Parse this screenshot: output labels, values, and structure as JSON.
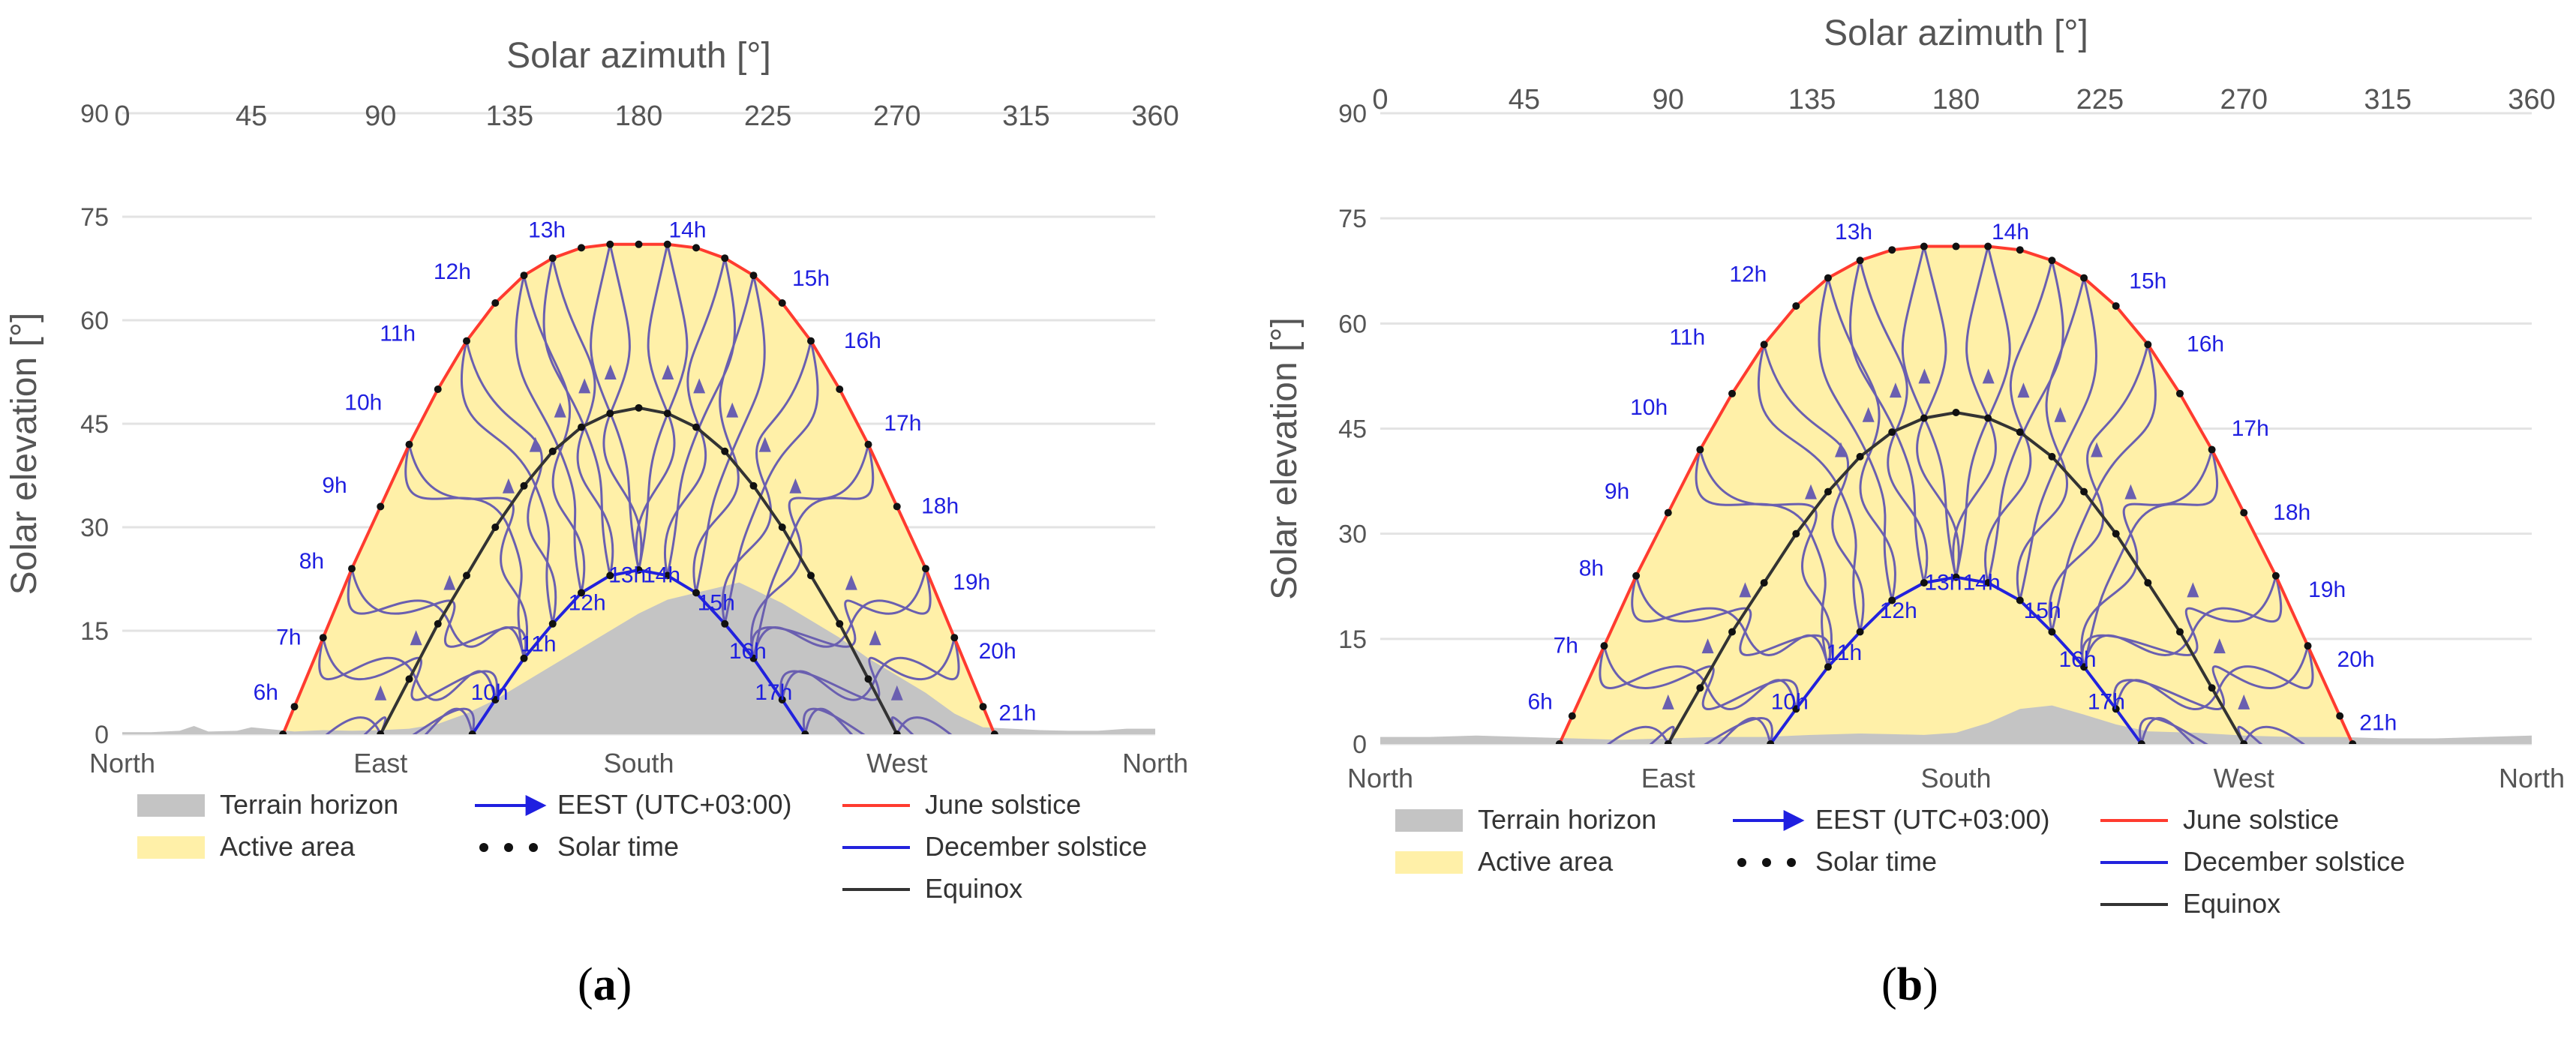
{
  "figure": {
    "panel_a_label": "a",
    "panel_b_label": "b"
  },
  "colors": {
    "terrain": "#c4c4c4",
    "active_area": "#fff0a8",
    "june": "#ff3b2f",
    "december": "#2222dd",
    "equinox": "#333333",
    "analemma": "#6a5fb0",
    "hour_label": "#1f1fe0",
    "grid": "#e3e3e3",
    "axis_text": "#555555",
    "dot": "#111111"
  },
  "chart_data": [
    {
      "type": "line",
      "panel": "a",
      "title": "Solar azimuth [°]",
      "xlabel": "Solar azimuth [°]",
      "ylabel": "Solar elevation [°]",
      "xlim": [
        0,
        360
      ],
      "ylim": [
        0,
        90
      ],
      "grid": true,
      "x_ticks": [
        "0",
        "45",
        "90",
        "135",
        "180",
        "225",
        "270",
        "315",
        "360"
      ],
      "y_ticks": [
        "0",
        "15",
        "30",
        "45",
        "60",
        "75",
        "90"
      ],
      "compass_labels": [
        {
          "label": "North",
          "azimuth": 0
        },
        {
          "label": "East",
          "azimuth": 90
        },
        {
          "label": "South",
          "azimuth": 180
        },
        {
          "label": "West",
          "azimuth": 270
        },
        {
          "label": "North",
          "azimuth": 360
        }
      ],
      "legend": {
        "position": "bottom",
        "items": [
          {
            "label": "Terrain horizon",
            "kind": "area",
            "color": "#c4c4c4"
          },
          {
            "label": "Active area",
            "kind": "area",
            "color": "#fff0a8"
          },
          {
            "label": "EEST (UTC+03:00)",
            "kind": "arrow",
            "color": "#1f1fe0"
          },
          {
            "label": "Solar time",
            "kind": "dots",
            "color": "#111111"
          },
          {
            "label": "June solstice",
            "kind": "line",
            "color": "#ff3b2f"
          },
          {
            "label": "December solstice",
            "kind": "line",
            "color": "#2222dd"
          },
          {
            "label": "Equinox",
            "kind": "line",
            "color": "#333333"
          }
        ]
      },
      "series": [
        {
          "name": "Terrain horizon",
          "x": [
            0,
            10,
            20,
            25,
            30,
            40,
            45,
            55,
            60,
            70,
            80,
            90,
            100,
            110,
            120,
            130,
            140,
            150,
            160,
            170,
            180,
            190,
            200,
            210,
            215,
            220,
            230,
            240,
            250,
            260,
            270,
            280,
            290,
            300,
            310,
            320,
            330,
            340,
            350,
            360
          ],
          "y": [
            0.3,
            0.3,
            0.5,
            1.2,
            0.4,
            0.5,
            1.0,
            0.6,
            0.4,
            0.6,
            0.5,
            0.6,
            0.8,
            1.5,
            3.0,
            5.0,
            7.5,
            10.0,
            12.5,
            15.0,
            17.5,
            19.5,
            20.5,
            21.5,
            22.0,
            21.0,
            19.0,
            16.5,
            14.0,
            11.0,
            8.5,
            6.0,
            3.0,
            1.0,
            0.8,
            0.6,
            0.5,
            0.5,
            0.8,
            0.8
          ]
        },
        {
          "name": "June solstice",
          "x": [
            56,
            60,
            70,
            80,
            90,
            100,
            110,
            120,
            130,
            140,
            150,
            160,
            170,
            180,
            190,
            200,
            210,
            220,
            230,
            240,
            250,
            260,
            270,
            280,
            290,
            300,
            304
          ],
          "y": [
            0,
            4,
            14,
            24,
            33,
            42,
            50,
            57,
            62.5,
            66.5,
            69,
            70.5,
            71,
            71,
            71,
            70.5,
            69,
            66.5,
            62.5,
            57,
            50,
            42,
            33,
            24,
            14,
            4,
            0
          ]
        },
        {
          "name": "Equinox",
          "x": [
            90,
            100,
            110,
            120,
            130,
            140,
            150,
            160,
            170,
            180,
            190,
            200,
            210,
            220,
            230,
            240,
            250,
            260,
            270
          ],
          "y": [
            0,
            8,
            16,
            23,
            30,
            36,
            41,
            44.5,
            46.5,
            47.3,
            46.5,
            44.5,
            41,
            36,
            30,
            23,
            16,
            8,
            0
          ]
        },
        {
          "name": "December solstice",
          "x": [
            122,
            130,
            140,
            150,
            160,
            170,
            180,
            190,
            200,
            210,
            220,
            230,
            238
          ],
          "y": [
            0,
            5,
            11,
            16,
            20.5,
            23,
            23.8,
            23,
            20.5,
            16,
            11,
            5,
            0
          ]
        }
      ],
      "hour_labels": [
        {
          "label": "6h",
          "azimuth": 50,
          "elevation": 5
        },
        {
          "label": "7h",
          "azimuth": 58,
          "elevation": 13
        },
        {
          "label": "8h",
          "azimuth": 66,
          "elevation": 24
        },
        {
          "label": "9h",
          "azimuth": 74,
          "elevation": 35
        },
        {
          "label": "10h",
          "azimuth": 84,
          "elevation": 47
        },
        {
          "label": "11h",
          "azimuth": 96,
          "elevation": 57
        },
        {
          "label": "12h",
          "azimuth": 115,
          "elevation": 66
        },
        {
          "label": "13h",
          "azimuth": 148,
          "elevation": 72
        },
        {
          "label": "14h",
          "azimuth": 197,
          "elevation": 72
        },
        {
          "label": "15h",
          "azimuth": 240,
          "elevation": 65
        },
        {
          "label": "16h",
          "azimuth": 258,
          "elevation": 56
        },
        {
          "label": "17h",
          "azimuth": 272,
          "elevation": 44
        },
        {
          "label": "18h",
          "azimuth": 285,
          "elevation": 32
        },
        {
          "label": "19h",
          "azimuth": 296,
          "elevation": 21
        },
        {
          "label": "20h",
          "azimuth": 305,
          "elevation": 11
        },
        {
          "label": "21h",
          "azimuth": 312,
          "elevation": 2
        },
        {
          "label": "10h",
          "azimuth": 128,
          "elevation": 5
        },
        {
          "label": "11h",
          "azimuth": 145,
          "elevation": 12
        },
        {
          "label": "12h",
          "azimuth": 162,
          "elevation": 18
        },
        {
          "label": "13h",
          "azimuth": 176,
          "elevation": 22
        },
        {
          "label": "14h",
          "azimuth": 188,
          "elevation": 22
        },
        {
          "label": "15h",
          "azimuth": 207,
          "elevation": 18
        },
        {
          "label": "16h",
          "azimuth": 218,
          "elevation": 11
        },
        {
          "label": "17h",
          "azimuth": 227,
          "elevation": 5
        }
      ]
    },
    {
      "type": "line",
      "panel": "b",
      "title": "Solar azimuth [°]",
      "xlabel": "Solar azimuth [°]",
      "ylabel": "Solar elevation [°]",
      "xlim": [
        0,
        360
      ],
      "ylim": [
        0,
        90
      ],
      "grid": true,
      "x_ticks": [
        "0",
        "45",
        "90",
        "135",
        "180",
        "225",
        "270",
        "315",
        "360"
      ],
      "y_ticks": [
        "0",
        "15",
        "30",
        "45",
        "60",
        "75",
        "90"
      ],
      "compass_labels": [
        {
          "label": "North",
          "azimuth": 0
        },
        {
          "label": "East",
          "azimuth": 90
        },
        {
          "label": "South",
          "azimuth": 180
        },
        {
          "label": "West",
          "azimuth": 270
        },
        {
          "label": "North",
          "azimuth": 360
        }
      ],
      "legend": {
        "position": "bottom",
        "items": [
          {
            "label": "Terrain horizon",
            "kind": "area",
            "color": "#c4c4c4"
          },
          {
            "label": "Active area",
            "kind": "area",
            "color": "#fff0a8"
          },
          {
            "label": "EEST (UTC+03:00)",
            "kind": "arrow",
            "color": "#1f1fe0"
          },
          {
            "label": "Solar time",
            "kind": "dots",
            "color": "#111111"
          },
          {
            "label": "June solstice",
            "kind": "line",
            "color": "#ff3b2f"
          },
          {
            "label": "December solstice",
            "kind": "line",
            "color": "#2222dd"
          },
          {
            "label": "Equinox",
            "kind": "line",
            "color": "#333333"
          }
        ]
      },
      "series": [
        {
          "name": "Terrain horizon",
          "x": [
            0,
            15,
            30,
            45,
            60,
            75,
            90,
            105,
            120,
            135,
            150,
            160,
            170,
            180,
            190,
            200,
            210,
            220,
            230,
            240,
            255,
            270,
            285,
            300,
            315,
            330,
            345,
            360
          ],
          "y": [
            1.0,
            1.0,
            1.2,
            1.0,
            0.8,
            0.6,
            0.8,
            1.0,
            1.0,
            1.3,
            1.5,
            1.4,
            1.3,
            1.6,
            3.0,
            5.0,
            5.5,
            4.2,
            2.8,
            1.8,
            1.6,
            1.2,
            1.0,
            1.0,
            0.8,
            0.8,
            1.0,
            1.2
          ]
        },
        {
          "name": "June solstice",
          "x": [
            56,
            60,
            70,
            80,
            90,
            100,
            110,
            120,
            130,
            140,
            150,
            160,
            170,
            180,
            190,
            200,
            210,
            220,
            230,
            240,
            250,
            260,
            270,
            280,
            290,
            300,
            304
          ],
          "y": [
            0,
            4,
            14,
            24,
            33,
            42,
            50,
            57,
            62.5,
            66.5,
            69,
            70.5,
            71,
            71,
            71,
            70.5,
            69,
            66.5,
            62.5,
            57,
            50,
            42,
            33,
            24,
            14,
            4,
            0
          ]
        },
        {
          "name": "Equinox",
          "x": [
            90,
            100,
            110,
            120,
            130,
            140,
            150,
            160,
            170,
            180,
            190,
            200,
            210,
            220,
            230,
            240,
            250,
            260,
            270
          ],
          "y": [
            0,
            8,
            16,
            23,
            30,
            36,
            41,
            44.5,
            46.5,
            47.3,
            46.5,
            44.5,
            41,
            36,
            30,
            23,
            16,
            8,
            0
          ]
        },
        {
          "name": "December solstice",
          "x": [
            122,
            130,
            140,
            150,
            160,
            170,
            180,
            190,
            200,
            210,
            220,
            230,
            238
          ],
          "y": [
            0,
            5,
            11,
            16,
            20.5,
            23,
            23.8,
            23,
            20.5,
            16,
            11,
            5,
            0
          ]
        }
      ],
      "hour_labels": [
        {
          "label": "6h",
          "azimuth": 50,
          "elevation": 5
        },
        {
          "label": "7h",
          "azimuth": 58,
          "elevation": 13
        },
        {
          "label": "8h",
          "azimuth": 66,
          "elevation": 24
        },
        {
          "label": "9h",
          "azimuth": 74,
          "elevation": 35
        },
        {
          "label": "10h",
          "azimuth": 84,
          "elevation": 47
        },
        {
          "label": "11h",
          "azimuth": 96,
          "elevation": 57
        },
        {
          "label": "12h",
          "azimuth": 115,
          "elevation": 66
        },
        {
          "label": "13h",
          "azimuth": 148,
          "elevation": 72
        },
        {
          "label": "14h",
          "azimuth": 197,
          "elevation": 72
        },
        {
          "label": "15h",
          "azimuth": 240,
          "elevation": 65
        },
        {
          "label": "16h",
          "azimuth": 258,
          "elevation": 56
        },
        {
          "label": "17h",
          "azimuth": 272,
          "elevation": 44
        },
        {
          "label": "18h",
          "azimuth": 285,
          "elevation": 32
        },
        {
          "label": "19h",
          "azimuth": 296,
          "elevation": 21
        },
        {
          "label": "20h",
          "azimuth": 305,
          "elevation": 11
        },
        {
          "label": "21h",
          "azimuth": 312,
          "elevation": 2
        },
        {
          "label": "10h",
          "azimuth": 128,
          "elevation": 5
        },
        {
          "label": "11h",
          "azimuth": 145,
          "elevation": 12
        },
        {
          "label": "12h",
          "azimuth": 162,
          "elevation": 18
        },
        {
          "label": "13h",
          "azimuth": 176,
          "elevation": 22
        },
        {
          "label": "14h",
          "azimuth": 188,
          "elevation": 22
        },
        {
          "label": "15h",
          "azimuth": 207,
          "elevation": 18
        },
        {
          "label": "16h",
          "azimuth": 218,
          "elevation": 11
        },
        {
          "label": "17h",
          "azimuth": 227,
          "elevation": 5
        }
      ]
    }
  ]
}
